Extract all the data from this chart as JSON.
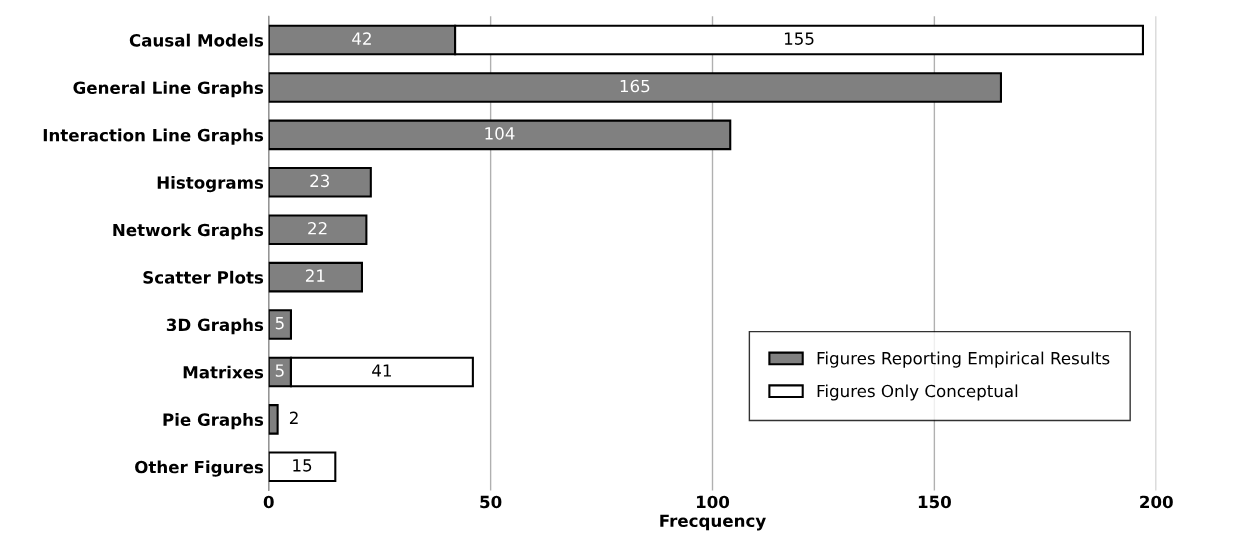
{
  "chart_data": {
    "type": "bar",
    "orientation": "horizontal",
    "stacked": true,
    "xlabel": "Frecquency",
    "categories": [
      "Causal Models",
      "General Line Graphs",
      "Interaction Line Graphs",
      "Histograms",
      "Network Graphs",
      "Scatter Plots",
      "3D Graphs",
      "Matrixes",
      "Pie Graphs",
      "Other Figures"
    ],
    "series": [
      {
        "name": "Figures Reporting Empirical Results",
        "color": "#808080",
        "values": [
          42,
          165,
          104,
          23,
          22,
          21,
          5,
          5,
          2,
          0
        ],
        "value_labels": [
          "42",
          "165",
          "104",
          "23",
          "22",
          "21",
          "5",
          "5",
          "2",
          null
        ]
      },
      {
        "name": "Figures Only Conceptual",
        "color": "#ffffff",
        "values": [
          155,
          0,
          0,
          0,
          0,
          0,
          0,
          41,
          0,
          15
        ],
        "value_labels": [
          "155",
          null,
          null,
          null,
          null,
          null,
          null,
          "41",
          null,
          "15"
        ]
      }
    ],
    "xlim": [
      0,
      200
    ],
    "xticks": [
      0,
      50,
      100,
      150,
      200
    ],
    "grid": "x",
    "legend": "bottom right"
  }
}
